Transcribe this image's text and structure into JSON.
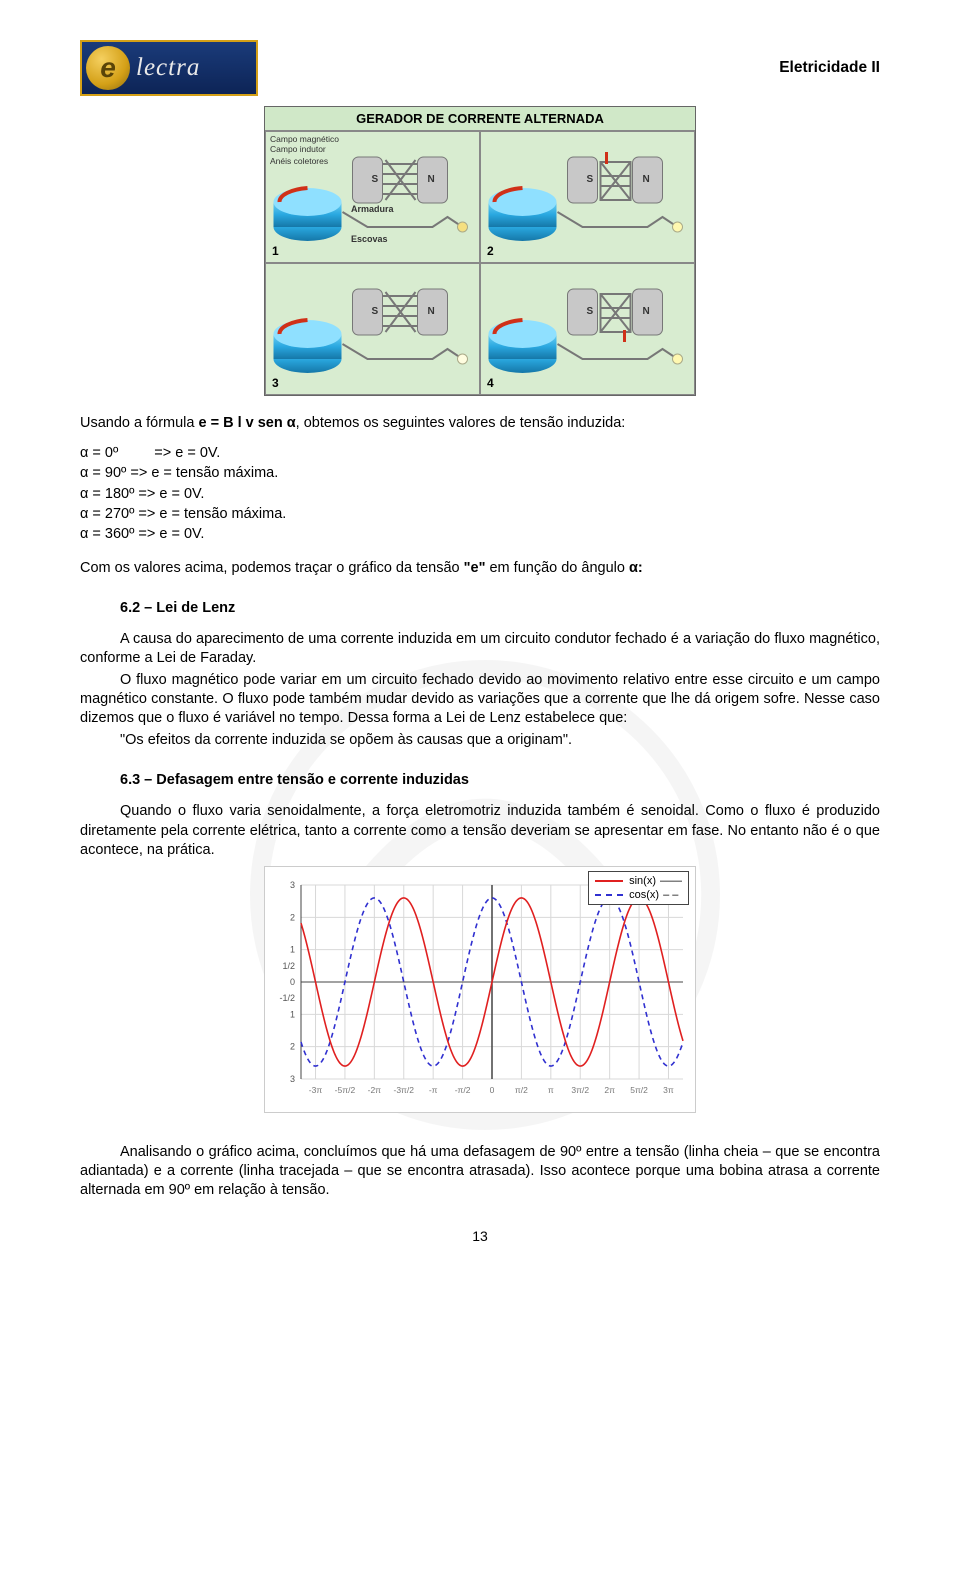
{
  "header": {
    "logo_letter": "e",
    "logo_word": "lectra",
    "title": "Eletricidade II"
  },
  "generator": {
    "title": "GERADOR DE CORRENTE ALTERNADA",
    "labels": {
      "campo_magnetico": "Campo magnético",
      "campo_indutor": "Campo indutor",
      "aneis": "Anéis\ncoletores",
      "armadura": "Armadura",
      "escovas": "Escovas"
    },
    "cells": [
      "1",
      "2",
      "3",
      "4"
    ],
    "colors": {
      "cyl": "#2aa8e0",
      "cyl_dark": "#1577a8",
      "core": "#b0b0b0",
      "arrow": "#d03018",
      "bg": "#d8ecd0"
    }
  },
  "text": {
    "p1": "Usando a fórmula e = B l v sen α, obtemos os seguintes valores de tensão induzida:",
    "angles": {
      "a0": "α = 0º",
      "a0v": "=> e = 0V.",
      "a90": "α = 90º   => e = tensão máxima.",
      "a180": "α = 180º => e = 0V.",
      "a270": "α = 270º => e = tensão máxima.",
      "a360": "α = 360º => e = 0V."
    },
    "p2": "Com os valores acima, podemos traçar o gráfico da tensão \"e\" em função do ângulo α:",
    "h62": "6.2 – Lei de Lenz",
    "p3": "A causa do aparecimento de uma corrente induzida em um circuito condutor fechado é a variação do fluxo magnético, conforme a Lei de Faraday.",
    "p4": "O fluxo magnético pode variar em um circuito fechado devido ao movimento relativo entre esse circuito e um campo magnético constante. O fluxo pode também mudar devido as variações que a corrente que lhe dá origem sofre. Nesse caso dizemos que o fluxo é variável no tempo. Dessa forma a Lei de Lenz estabelece que:",
    "p5": "\"Os efeitos da corrente induzida se opõem às causas que a originam\".",
    "h63": "6.3 – Defasagem entre tensão e corrente induzidas",
    "p6": "Quando o fluxo varia senoidalmente, a força eletromotriz induzida também é senoidal. Como o fluxo é produzido diretamente pela corrente elétrica, tanto a corrente como a tensão deveriam se apresentar em fase. No entanto não é o que acontece, na prática.",
    "p7": "Analisando o gráfico acima, concluímos que há uma defasagem de 90º entre a tensão (linha cheia – que se encontra adiantada) e a corrente (linha tracejada – que se encontra atrasada). Isso acontece porque uma bobina atrasa a corrente alternada em 90º em relação à tensão."
  },
  "sine_chart": {
    "type": "line",
    "legend": {
      "sin": "sin(x)",
      "cos": "cos(x)"
    },
    "colors": {
      "sin": "#e02020",
      "cos": "#3030d0",
      "grid": "#d8d8d8",
      "axis": "#444444",
      "bg": "#ffffff"
    },
    "xlim": [
      -10.2,
      10.2
    ],
    "ylim": [
      -3,
      3
    ],
    "ytick_labels": [
      "3",
      "2",
      "1",
      "1/2",
      "0",
      "-1/2",
      "1",
      "2",
      "3"
    ],
    "xtick_labels": [
      "-3π",
      "-5π/2",
      "-2π",
      "-3π/2",
      "-π",
      "-π/2",
      "0",
      "π/2",
      "π",
      "3π/2",
      "2π",
      "5π/2",
      "3π"
    ],
    "amplitude": 2.6,
    "periods_visible": 3.2,
    "line_width": 1.6,
    "cos_dash": "5,4"
  },
  "page_number": "13"
}
